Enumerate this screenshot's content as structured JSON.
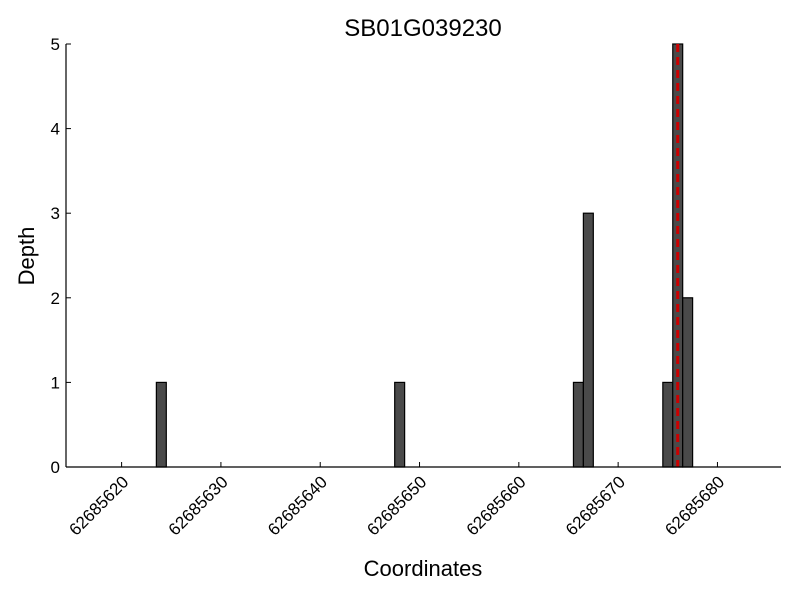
{
  "chart_data": {
    "type": "bar",
    "title": "SB01G039230",
    "xlabel": "Coordinates",
    "ylabel": "Depth",
    "xlim": [
      62685614.4,
      62685686.4
    ],
    "ylim": [
      0,
      5
    ],
    "x_ticks": [
      62685620,
      62685630,
      62685640,
      62685650,
      62685660,
      62685670,
      62685680
    ],
    "y_ticks": [
      0,
      1,
      2,
      3,
      4,
      5
    ],
    "bar_width": 1,
    "bars": [
      {
        "x": 62685624,
        "value": 1
      },
      {
        "x": 62685648,
        "value": 1
      },
      {
        "x": 62685666,
        "value": 1
      },
      {
        "x": 62685667,
        "value": 3
      },
      {
        "x": 62685675,
        "value": 1
      },
      {
        "x": 62685676,
        "value": 5
      },
      {
        "x": 62685677,
        "value": 2
      }
    ],
    "marker_line": {
      "x": 62685676,
      "color": "#cc0000",
      "style": "dashed"
    },
    "bar_color": "#4a4a4a",
    "grid": false
  }
}
